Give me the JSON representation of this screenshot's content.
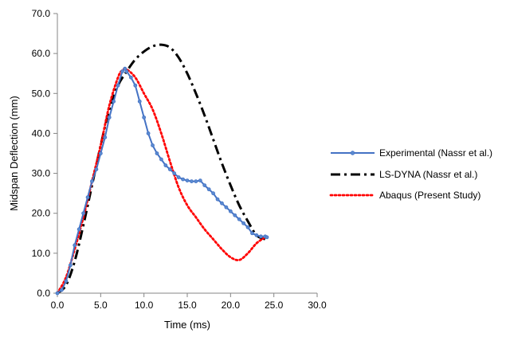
{
  "chart_data": {
    "type": "line",
    "title": "",
    "xlabel": "Time (ms)",
    "ylabel": "Midspan Deflection (mm)",
    "xlim": [
      0,
      30
    ],
    "ylim": [
      0,
      70
    ],
    "x_ticks": [
      "0.0",
      "5.0",
      "10.0",
      "15.0",
      "20.0",
      "25.0",
      "30.0"
    ],
    "y_ticks": [
      "0.0",
      "10.0",
      "20.0",
      "30.0",
      "40.0",
      "50.0",
      "60.0",
      "70.0"
    ],
    "grid": false,
    "legend_position": "right",
    "series": [
      {
        "name": "Experimental (Nassr et al.)",
        "color": "#4472C4",
        "style": "solid-with-markers",
        "points": [
          [
            0,
            0
          ],
          [
            0.5,
            0.8
          ],
          [
            1,
            3
          ],
          [
            1.5,
            7
          ],
          [
            2,
            12
          ],
          [
            2.5,
            16
          ],
          [
            3,
            20
          ],
          [
            3.5,
            24
          ],
          [
            4,
            28
          ],
          [
            4.5,
            31
          ],
          [
            5,
            35
          ],
          [
            5.5,
            39
          ],
          [
            6,
            44
          ],
          [
            6.5,
            48
          ],
          [
            7,
            52
          ],
          [
            7.5,
            55.5
          ],
          [
            7.8,
            56.2
          ],
          [
            8,
            55.5
          ],
          [
            8.5,
            54
          ],
          [
            9,
            52
          ],
          [
            9.5,
            48
          ],
          [
            10,
            44
          ],
          [
            10.5,
            40
          ],
          [
            11,
            37
          ],
          [
            11.5,
            35
          ],
          [
            12,
            33.5
          ],
          [
            12.5,
            32
          ],
          [
            13,
            31
          ],
          [
            13.5,
            30
          ],
          [
            14,
            29
          ],
          [
            14.5,
            28.5
          ],
          [
            15,
            28.2
          ],
          [
            15.5,
            28
          ],
          [
            16,
            28
          ],
          [
            16.5,
            28.2
          ],
          [
            17,
            27
          ],
          [
            17.5,
            26
          ],
          [
            18,
            25
          ],
          [
            18.5,
            23.5
          ],
          [
            19,
            22.5
          ],
          [
            19.5,
            21.5
          ],
          [
            20,
            20.5
          ],
          [
            20.5,
            19.5
          ],
          [
            21,
            18.5
          ],
          [
            21.5,
            17.5
          ],
          [
            22,
            16.5
          ],
          [
            22.5,
            15
          ],
          [
            23,
            14.5
          ],
          [
            23.5,
            14.2
          ],
          [
            24,
            14.2
          ],
          [
            24.2,
            14
          ]
        ]
      },
      {
        "name": "LS-DYNA (Nassr et al.)",
        "color": "#000000",
        "style": "dash-dot",
        "points": [
          [
            0,
            0
          ],
          [
            1,
            2
          ],
          [
            2,
            8
          ],
          [
            3,
            17
          ],
          [
            4,
            27
          ],
          [
            5,
            37
          ],
          [
            6,
            46
          ],
          [
            7,
            52
          ],
          [
            8,
            55.5
          ],
          [
            9,
            58.5
          ],
          [
            10,
            60.5
          ],
          [
            11,
            61.8
          ],
          [
            12,
            62.2
          ],
          [
            13,
            61.5
          ],
          [
            14,
            59
          ],
          [
            15,
            55
          ],
          [
            16,
            50
          ],
          [
            17,
            44.5
          ],
          [
            18,
            38.5
          ],
          [
            19,
            32.5
          ],
          [
            20,
            27
          ],
          [
            21,
            22
          ],
          [
            22,
            18
          ],
          [
            23,
            14.5
          ],
          [
            24,
            13.5
          ]
        ]
      },
      {
        "name": "Abaqus (Present Study)",
        "color": "#FF0000",
        "style": "dotted",
        "points": [
          [
            0,
            0
          ],
          [
            1,
            4
          ],
          [
            2,
            11
          ],
          [
            3,
            19
          ],
          [
            4,
            28
          ],
          [
            5,
            37
          ],
          [
            6,
            47
          ],
          [
            7,
            54
          ],
          [
            7.5,
            55.8
          ],
          [
            8,
            56
          ],
          [
            9,
            54
          ],
          [
            10,
            50
          ],
          [
            11,
            46
          ],
          [
            12,
            40
          ],
          [
            13,
            33
          ],
          [
            14,
            26.5
          ],
          [
            15,
            22
          ],
          [
            16,
            19
          ],
          [
            17,
            16
          ],
          [
            18,
            13.5
          ],
          [
            19,
            11
          ],
          [
            20,
            9
          ],
          [
            21,
            8.3
          ],
          [
            22,
            10
          ],
          [
            23,
            12.5
          ],
          [
            24,
            14
          ]
        ]
      }
    ]
  }
}
